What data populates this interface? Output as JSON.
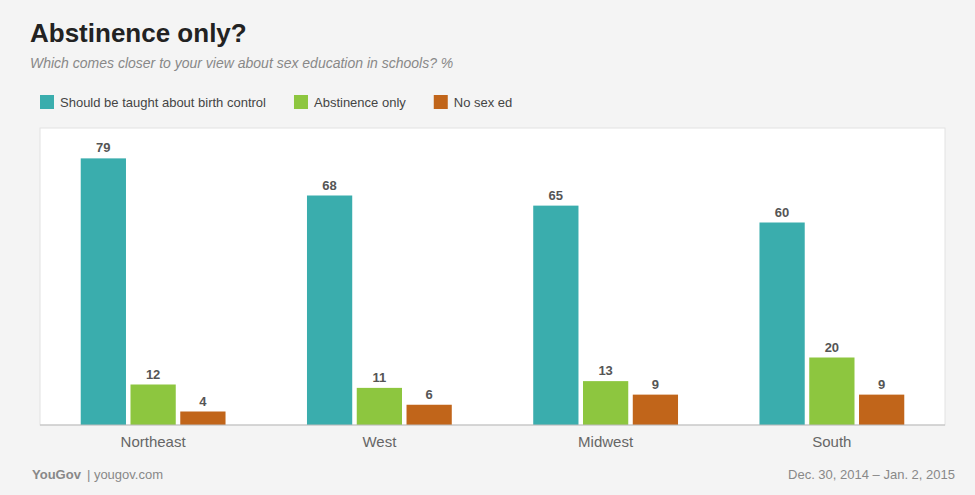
{
  "chart_data": {
    "type": "bar",
    "title": "Abstinence only?",
    "subtitle": "Which comes closer to your view about sex education in schools? %",
    "categories": [
      "Northeast",
      "West",
      "Midwest",
      "South"
    ],
    "series": [
      {
        "name": "Should be taught about birth control",
        "color": "#3aadad",
        "values": [
          79,
          68,
          65,
          60
        ]
      },
      {
        "name": "Abstinence only",
        "color": "#8dc63f",
        "values": [
          12,
          11,
          13,
          20
        ]
      },
      {
        "name": "No sex ed",
        "color": "#c1651a",
        "values": [
          4,
          6,
          9,
          9
        ]
      }
    ],
    "ylim": [
      0,
      88
    ],
    "tick_labels": "x",
    "data_labels": true,
    "grid": false,
    "legend": "top",
    "annotations": [
      "You",
      "Gov",
      "| yougov.com",
      "Dec. 30, 2014 – Jan. 2, 2015"
    ]
  }
}
